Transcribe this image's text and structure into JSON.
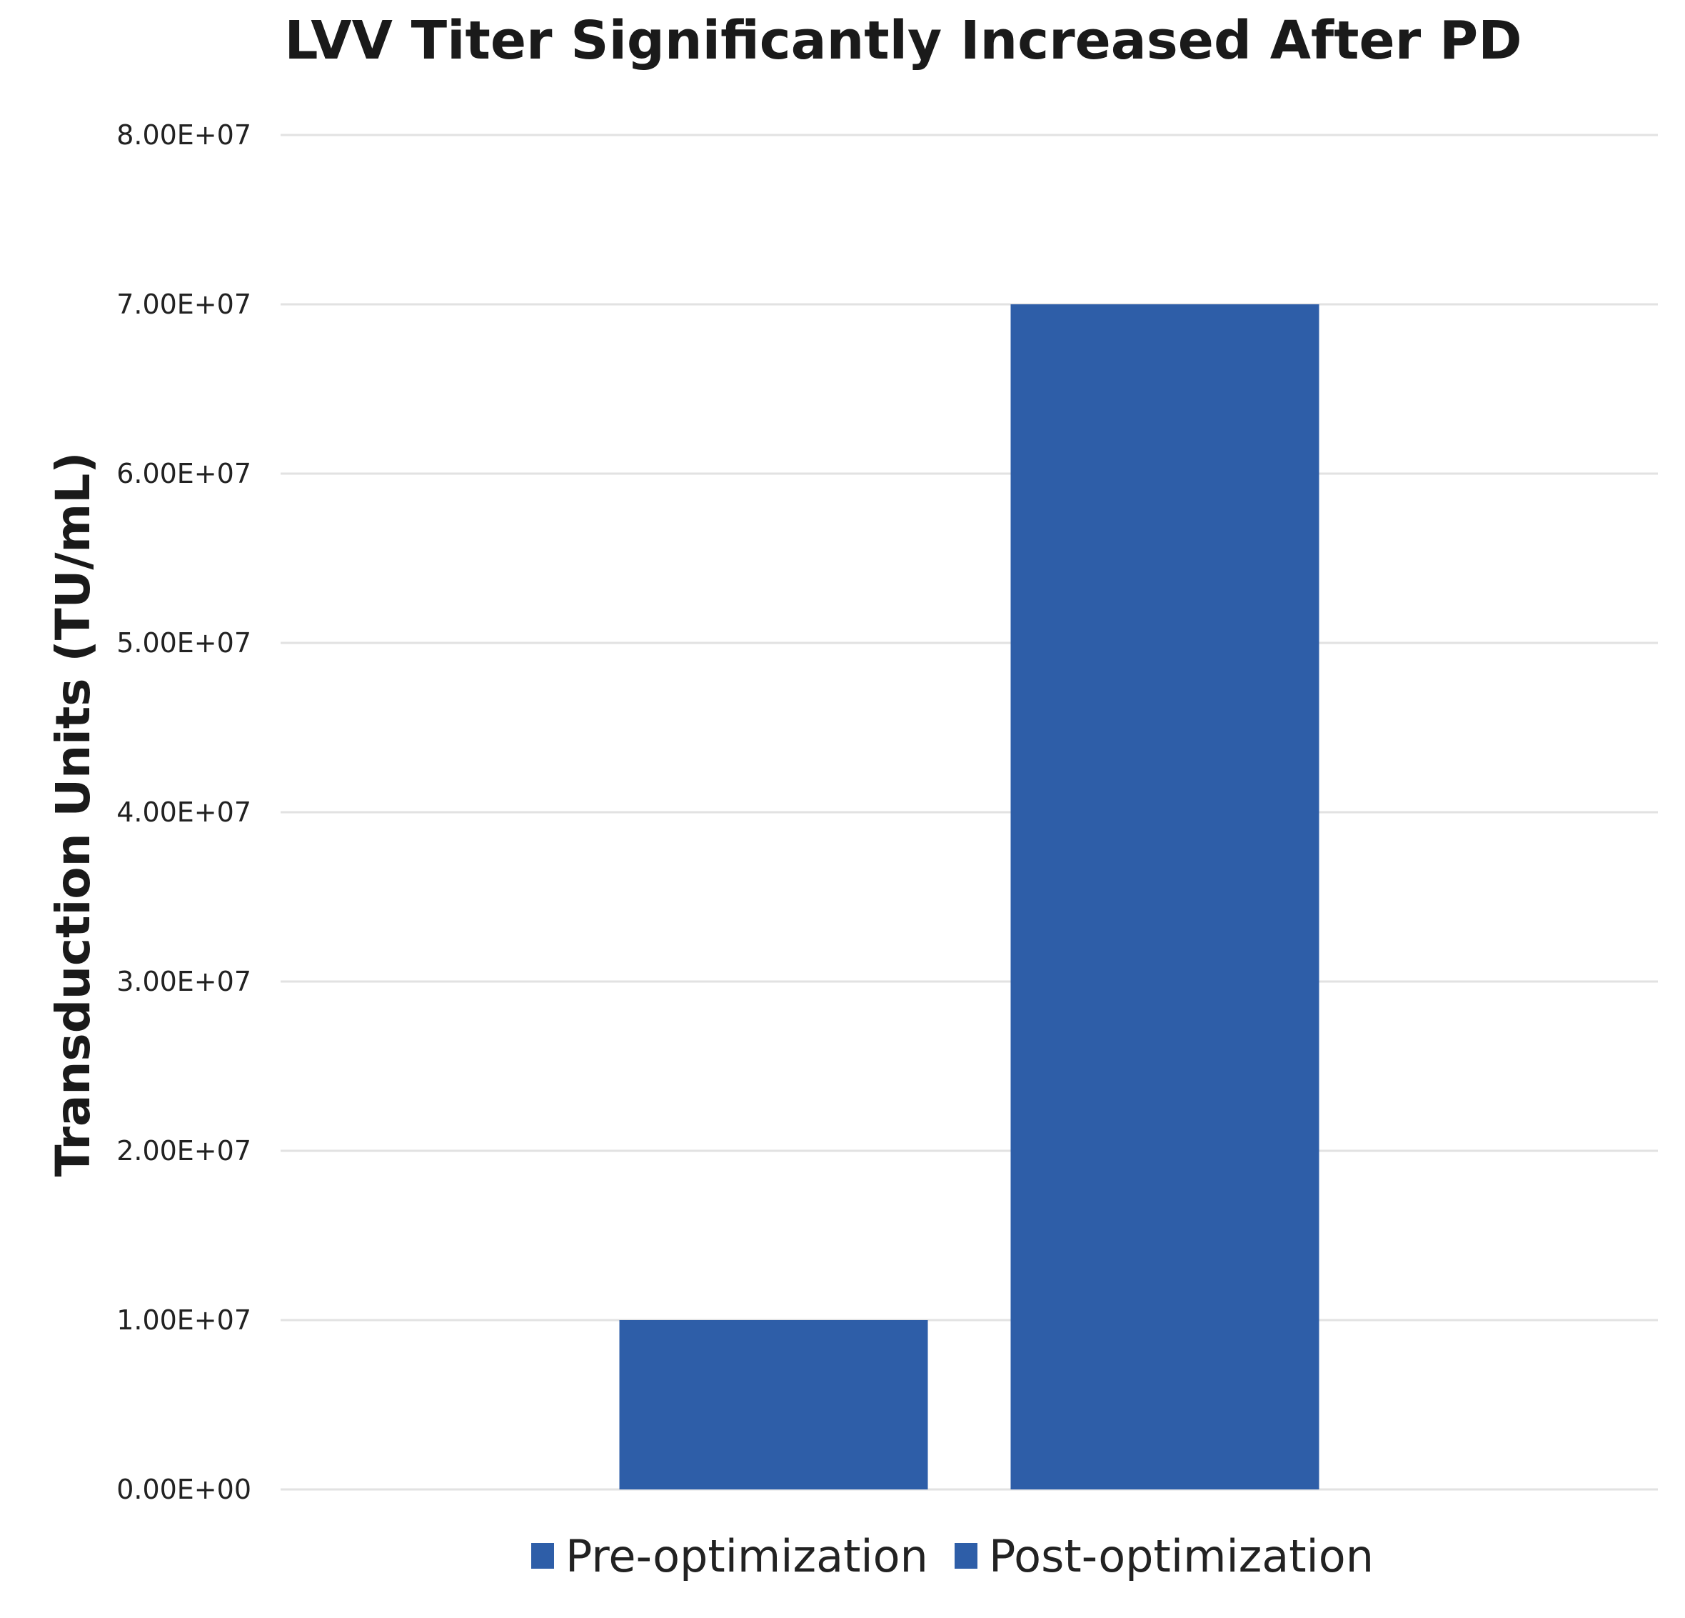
{
  "chart_data": {
    "type": "bar",
    "title": "LVV Titer Significantly Increased After PD",
    "xlabel": "",
    "ylabel": "Transduction Units (TU/mL)",
    "categories": [
      ""
    ],
    "series": [
      {
        "name": "Pre-optimization",
        "values": [
          10000000
        ],
        "color": "#2E5EA8"
      },
      {
        "name": "Post-optimization",
        "values": [
          70000000
        ],
        "color": "#2E5EA8"
      }
    ],
    "ylim": [
      0,
      80000000
    ],
    "yticks": [
      0,
      10000000,
      20000000,
      30000000,
      40000000,
      50000000,
      60000000,
      70000000,
      80000000
    ],
    "ytick_labels": [
      "0.00E+00",
      "1.00E+07",
      "2.00E+07",
      "3.00E+07",
      "4.00E+07",
      "5.00E+07",
      "6.00E+07",
      "7.00E+07",
      "8.00E+07"
    ],
    "grid": true,
    "legend": {
      "placement": "bottom",
      "entries": [
        "Pre-optimization",
        "Post-optimization"
      ]
    }
  }
}
